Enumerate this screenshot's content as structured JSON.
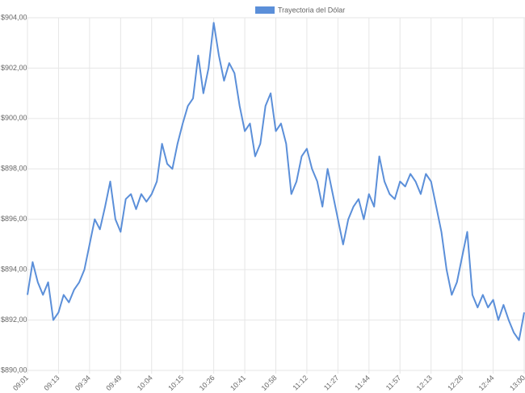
{
  "chart_data": {
    "type": "line",
    "categories": [
      "09:01",
      null,
      null,
      null,
      null,
      null,
      "09:13",
      null,
      null,
      null,
      null,
      null,
      "09:34",
      null,
      null,
      null,
      null,
      null,
      "09:49",
      null,
      null,
      null,
      null,
      null,
      "10:04",
      null,
      null,
      null,
      null,
      null,
      "10:15",
      null,
      null,
      null,
      null,
      null,
      "10:26",
      null,
      null,
      null,
      null,
      null,
      "10:41",
      null,
      null,
      null,
      null,
      null,
      "10:58",
      null,
      null,
      null,
      null,
      null,
      "11:12",
      null,
      null,
      null,
      null,
      null,
      "11:27",
      null,
      null,
      null,
      null,
      null,
      "11:44",
      null,
      null,
      null,
      null,
      null,
      "11:57",
      null,
      null,
      null,
      null,
      null,
      "12:13",
      null,
      null,
      null,
      null,
      null,
      "12:28",
      null,
      null,
      null,
      null,
      null,
      "12:44",
      null,
      null,
      null,
      null,
      null,
      "13:00"
    ],
    "series": [
      {
        "name": "Trayectoria del Dólar",
        "color": "#5b8fd9",
        "values": [
          893.0,
          894.3,
          893.5,
          893.0,
          893.5,
          892.0,
          892.3,
          893.0,
          892.7,
          893.2,
          893.5,
          894.0,
          895.0,
          896.0,
          895.6,
          896.5,
          897.5,
          896.0,
          895.5,
          896.8,
          897.0,
          896.4,
          897.0,
          896.7,
          897.0,
          897.5,
          899.0,
          898.2,
          898.0,
          899.0,
          899.8,
          900.5,
          900.8,
          902.5,
          901.0,
          902.0,
          903.8,
          902.5,
          901.5,
          902.2,
          901.8,
          900.5,
          899.5,
          899.8,
          898.5,
          899.0,
          900.5,
          901.0,
          899.5,
          899.8,
          899.0,
          897.0,
          897.5,
          898.5,
          898.8,
          898.0,
          897.5,
          896.5,
          898.0,
          897.0,
          896.0,
          895.0,
          896.0,
          896.5,
          896.8,
          896.0,
          897.0,
          896.5,
          898.5,
          897.5,
          897.0,
          896.8,
          897.5,
          897.3,
          897.8,
          897.5,
          897.0,
          897.8,
          897.5,
          896.5,
          895.5,
          894.0,
          893.0,
          893.5,
          894.5,
          895.5,
          893.0,
          892.5,
          893.0,
          892.5,
          892.8,
          892.0,
          892.6,
          892.0,
          891.5,
          891.2,
          892.3
        ]
      }
    ],
    "ylim": [
      890,
      904
    ],
    "yticks": [
      {
        "value": 890,
        "label": "$890,00"
      },
      {
        "value": 892,
        "label": "$892,00"
      },
      {
        "value": 894,
        "label": "$894,00"
      },
      {
        "value": 896,
        "label": "$896,00"
      },
      {
        "value": 898,
        "label": "$898,00"
      },
      {
        "value": 900,
        "label": "$900,00"
      },
      {
        "value": 902,
        "label": "$902,00"
      },
      {
        "value": 904,
        "label": "$904,00"
      }
    ],
    "grid": true
  }
}
